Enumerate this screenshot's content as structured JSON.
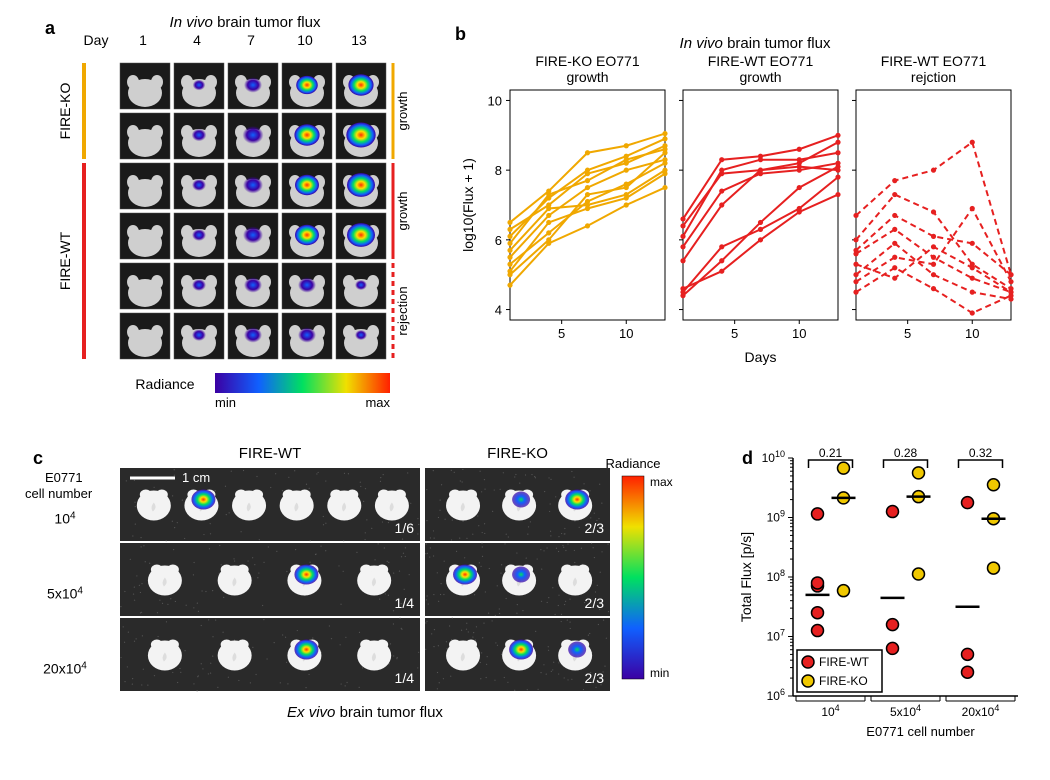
{
  "labels": {
    "a": "a",
    "b": "b",
    "c": "c",
    "d": "d"
  },
  "panelA": {
    "title": "In vivo  brain tumor flux",
    "dayLabel": "Day",
    "days": [
      "1",
      "4",
      "7",
      "10",
      "13"
    ],
    "groups": [
      {
        "name": "FIRE-KO",
        "barColor": "#f0a800",
        "rows": [
          {
            "side": "growth"
          },
          {
            "side": "growth"
          }
        ]
      },
      {
        "name": "FIRE-WT",
        "barColor": "#e62020",
        "rows": [
          {
            "side": "growth"
          },
          {
            "side": "growth"
          },
          {
            "side": "rejection",
            "dashed": true
          },
          {
            "side": "rejection",
            "dashed": true
          }
        ]
      }
    ],
    "colorbar": {
      "label": "Radiance",
      "min": "min",
      "max": "max",
      "stops": [
        {
          "o": 0,
          "c": "#3b00a3"
        },
        {
          "o": 0.25,
          "c": "#1060ff"
        },
        {
          "o": 0.5,
          "c": "#00e060"
        },
        {
          "o": 0.75,
          "c": "#f0e000"
        },
        {
          "o": 1,
          "c": "#ff2000"
        }
      ]
    }
  },
  "panelB": {
    "title": "In vivo brain tumor flux",
    "ylabel": "log10(Flux + 1)",
    "xlabel": "Days",
    "yticks": [
      4,
      6,
      8,
      10
    ],
    "xticks": [
      5,
      10
    ],
    "xlim": [
      1,
      13
    ],
    "ylim": [
      3.7,
      10.3
    ],
    "subplots": [
      {
        "title": "FIRE-KO EO771\ngrowth",
        "color": "#f0a800",
        "dashed": false,
        "series": [
          [
            [
              1,
              6.5
            ],
            [
              4,
              7.4
            ],
            [
              7,
              8.5
            ],
            [
              10,
              8.7
            ],
            [
              13,
              9.05
            ]
          ],
          [
            [
              1,
              6.1
            ],
            [
              4,
              7.2
            ],
            [
              7,
              8.0
            ],
            [
              10,
              8.4
            ],
            [
              13,
              8.9
            ]
          ],
          [
            [
              1,
              6.3
            ],
            [
              4,
              7.0
            ],
            [
              7,
              7.9
            ],
            [
              10,
              8.2
            ],
            [
              13,
              8.7
            ]
          ],
          [
            [
              1,
              5.9
            ],
            [
              4,
              7.3
            ],
            [
              7,
              7.7
            ],
            [
              10,
              8.3
            ],
            [
              13,
              8.6
            ]
          ],
          [
            [
              1,
              5.5
            ],
            [
              4,
              6.7
            ],
            [
              7,
              7.5
            ],
            [
              10,
              8.0
            ],
            [
              13,
              8.3
            ]
          ],
          [
            [
              1,
              5.3
            ],
            [
              4,
              6.2
            ],
            [
              7,
              7.1
            ],
            [
              10,
              7.6
            ],
            [
              13,
              8.2
            ]
          ],
          [
            [
              1,
              5.7
            ],
            [
              4,
              6.9
            ],
            [
              7,
              7.0
            ],
            [
              10,
              7.3
            ],
            [
              13,
              8.0
            ]
          ],
          [
            [
              1,
              5.1
            ],
            [
              4,
              6.5
            ],
            [
              7,
              6.9
            ],
            [
              10,
              7.2
            ],
            [
              13,
              7.9
            ]
          ],
          [
            [
              1,
              4.7
            ],
            [
              4,
              5.9
            ],
            [
              7,
              6.4
            ],
            [
              10,
              7.0
            ],
            [
              13,
              7.5
            ]
          ],
          [
            [
              1,
              5.0
            ],
            [
              4,
              6.0
            ],
            [
              7,
              7.3
            ],
            [
              10,
              7.5
            ],
            [
              13,
              8.5
            ]
          ]
        ]
      },
      {
        "title": "FIRE-WT EO771\ngrowth",
        "color": "#e62020",
        "dashed": false,
        "series": [
          [
            [
              1,
              6.6
            ],
            [
              4,
              8.3
            ],
            [
              7,
              8.4
            ],
            [
              10,
              8.6
            ],
            [
              13,
              9.0
            ]
          ],
          [
            [
              1,
              6.4
            ],
            [
              4,
              7.9
            ],
            [
              7,
              8.0
            ],
            [
              10,
              8.2
            ],
            [
              13,
              8.8
            ]
          ],
          [
            [
              1,
              6.1
            ],
            [
              4,
              8.0
            ],
            [
              7,
              8.3
            ],
            [
              10,
              8.3
            ],
            [
              13,
              8.5
            ]
          ],
          [
            [
              1,
              5.4
            ],
            [
              4,
              7.0
            ],
            [
              7,
              8.0
            ],
            [
              10,
              8.1
            ],
            [
              13,
              8.0
            ]
          ],
          [
            [
              1,
              4.4
            ],
            [
              4,
              5.4
            ],
            [
              7,
              6.5
            ],
            [
              10,
              7.5
            ],
            [
              13,
              8.1
            ]
          ],
          [
            [
              1,
              4.6
            ],
            [
              4,
              5.1
            ],
            [
              7,
              6.0
            ],
            [
              10,
              6.8
            ],
            [
              13,
              7.3
            ]
          ],
          [
            [
              1,
              4.5
            ],
            [
              4,
              5.8
            ],
            [
              7,
              6.3
            ],
            [
              10,
              6.9
            ],
            [
              13,
              7.8
            ]
          ],
          [
            [
              1,
              5.8
            ],
            [
              4,
              7.4
            ],
            [
              7,
              7.9
            ],
            [
              10,
              8.0
            ],
            [
              13,
              8.2
            ]
          ]
        ]
      },
      {
        "title": "FIRE-WT EO771\nrejction",
        "color": "#e62020",
        "dashed": true,
        "series": [
          [
            [
              1,
              6.7
            ],
            [
              4,
              7.7
            ],
            [
              7,
              8.0
            ],
            [
              10,
              8.8
            ],
            [
              13,
              5.0
            ]
          ],
          [
            [
              1,
              6.0
            ],
            [
              4,
              7.3
            ],
            [
              7,
              6.8
            ],
            [
              10,
              5.3
            ],
            [
              13,
              4.6
            ]
          ],
          [
            [
              1,
              5.6
            ],
            [
              4,
              6.3
            ],
            [
              7,
              5.5
            ],
            [
              10,
              4.9
            ],
            [
              13,
              4.5
            ]
          ],
          [
            [
              1,
              5.0
            ],
            [
              4,
              5.9
            ],
            [
              7,
              5.0
            ],
            [
              10,
              4.5
            ],
            [
              13,
              4.3
            ]
          ],
          [
            [
              1,
              4.8
            ],
            [
              4,
              5.5
            ],
            [
              7,
              5.3
            ],
            [
              10,
              6.9
            ],
            [
              13,
              4.8
            ]
          ],
          [
            [
              1,
              5.3
            ],
            [
              4,
              4.9
            ],
            [
              7,
              5.8
            ],
            [
              10,
              5.2
            ],
            [
              13,
              4.5
            ]
          ],
          [
            [
              1,
              4.5
            ],
            [
              4,
              5.2
            ],
            [
              7,
              4.6
            ],
            [
              10,
              3.9
            ],
            [
              13,
              4.4
            ]
          ],
          [
            [
              1,
              5.7
            ],
            [
              4,
              6.7
            ],
            [
              7,
              6.1
            ],
            [
              10,
              5.9
            ],
            [
              13,
              5.0
            ]
          ]
        ]
      }
    ]
  },
  "panelC": {
    "ylabel": "E0771\ncell number",
    "scalebar": "1 cm",
    "caption": "Ex vivo brain tumor flux",
    "colorbarLabel": "Radiance",
    "cbMin": "min",
    "cbMax": "max",
    "groups": [
      "FIRE-WT",
      "FIRE-KO"
    ],
    "rows": [
      {
        "label": "10",
        "sup": "4",
        "wt": {
          "n": 6,
          "pos": [
            1
          ],
          "hot": 0,
          "frac": "1/6"
        },
        "ko": {
          "n": 3,
          "pos": [
            1,
            2
          ],
          "hot": 1,
          "frac": "2/3"
        }
      },
      {
        "label": "5x10",
        "sup": "4",
        "wt": {
          "n": 4,
          "pos": [
            2
          ],
          "hot": 0,
          "frac": "1/4"
        },
        "ko": {
          "n": 3,
          "pos": [
            0,
            1
          ],
          "hot": 0,
          "frac": "2/3"
        }
      },
      {
        "label": "20x10",
        "sup": "4",
        "wt": {
          "n": 4,
          "pos": [
            2
          ],
          "hot": 0,
          "frac": "1/4"
        },
        "ko": {
          "n": 3,
          "pos": [
            1,
            2
          ],
          "hot": 0,
          "frac": "2/3"
        }
      }
    ]
  },
  "panelD": {
    "ylabel": "Total Flux [p/s]",
    "xlabel": "E0771 cell number",
    "yticks": [
      6,
      7,
      8,
      9,
      10
    ],
    "yticklabels": [
      "10",
      "10",
      "10",
      "10",
      "10"
    ],
    "yticksup": [
      "6",
      "7",
      "8",
      "9",
      "10"
    ],
    "xticks": [
      1,
      2,
      3
    ],
    "xticklabels": [
      "10",
      "5x10",
      "20x10"
    ],
    "xticksup": "4",
    "pvals": [
      "0.21",
      "0.28",
      "0.32"
    ],
    "legend": [
      {
        "name": "FIRE-WT",
        "fill": "#e62020"
      },
      {
        "name": "FIRE-KO",
        "fill": "#f0c800"
      }
    ],
    "series": {
      "wt": {
        "color": "#e62020",
        "points": [
          [
            1,
            9.06
          ],
          [
            1,
            7.85
          ],
          [
            1,
            7.9
          ],
          [
            1,
            7.4
          ],
          [
            1,
            7.1
          ],
          [
            2,
            9.1
          ],
          [
            2,
            7.2
          ],
          [
            2,
            6.8
          ],
          [
            3,
            9.25
          ],
          [
            3,
            6.7
          ],
          [
            3,
            6.4
          ]
        ],
        "medians": [
          [
            1,
            7.7
          ],
          [
            2,
            7.65
          ],
          [
            3,
            7.5
          ]
        ]
      },
      "ko": {
        "color": "#f0c800",
        "points": [
          [
            1,
            9.83
          ],
          [
            1,
            9.33
          ],
          [
            1,
            7.77
          ],
          [
            2,
            9.75
          ],
          [
            2,
            9.35
          ],
          [
            2,
            8.05
          ],
          [
            3,
            9.55
          ],
          [
            3,
            8.98
          ],
          [
            3,
            8.15
          ]
        ],
        "medians": [
          [
            1,
            9.33
          ],
          [
            2,
            9.35
          ],
          [
            3,
            8.98
          ]
        ]
      }
    }
  }
}
